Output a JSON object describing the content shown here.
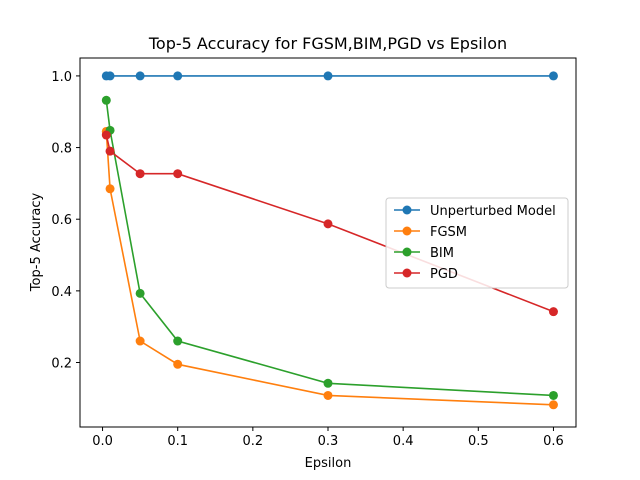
{
  "chart_data": {
    "type": "line",
    "title": "Top-5 Accuracy for FGSM,BIM,PGD vs Epsilon",
    "xlabel": "Epsilon",
    "ylabel": "Top-5 Accuracy",
    "xlim": [
      -0.03,
      0.63
    ],
    "ylim": [
      0.02,
      1.05
    ],
    "xticks": [
      0.0,
      0.1,
      0.2,
      0.3,
      0.4,
      0.5,
      0.6
    ],
    "xtick_labels": [
      "0.0",
      "0.1",
      "0.2",
      "0.3",
      "0.4",
      "0.5",
      "0.6"
    ],
    "yticks": [
      0.2,
      0.4,
      0.6,
      0.8,
      1.0
    ],
    "ytick_labels": [
      "0.2",
      "0.4",
      "0.6",
      "0.8",
      "1.0"
    ],
    "grid": false,
    "legend_position": "center-right",
    "x": [
      0.005,
      0.01,
      0.05,
      0.1,
      0.3,
      0.6
    ],
    "series": [
      {
        "name": "Unperturbed Model",
        "color": "#1f77b4",
        "values": [
          1.0,
          1.0,
          1.0,
          1.0,
          1.0,
          1.0
        ]
      },
      {
        "name": "FGSM",
        "color": "#ff7f0e",
        "values": [
          0.845,
          0.685,
          0.26,
          0.195,
          0.108,
          0.082
        ]
      },
      {
        "name": "BIM",
        "color": "#2ca02c",
        "values": [
          0.932,
          0.848,
          0.393,
          0.26,
          0.142,
          0.108
        ]
      },
      {
        "name": "PGD",
        "color": "#d62728",
        "values": [
          0.835,
          0.79,
          0.727,
          0.727,
          0.587,
          0.342
        ]
      }
    ]
  }
}
